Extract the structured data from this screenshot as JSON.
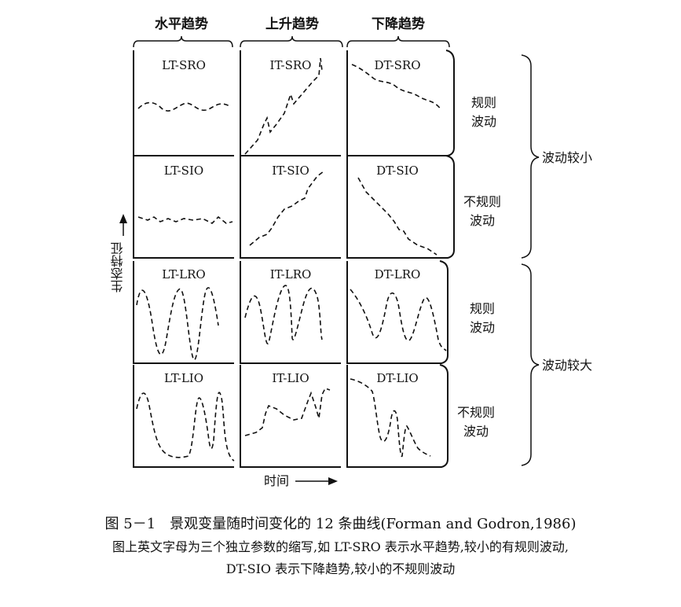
{
  "columns": [
    "水平趋势",
    "上升趋势",
    "下降趋势"
  ],
  "panels": [
    [
      "LT-SRO",
      "IT-SRO",
      "DT-SRO"
    ],
    [
      "LT-SIO",
      "IT-SIO",
      "DT-SIO"
    ],
    [
      "LT-LRO",
      "IT-LRO",
      "DT-LRO"
    ],
    [
      "LT-LIO",
      "IT-LIO",
      "DT-LIO"
    ]
  ],
  "row_labels": [
    [
      "规则",
      "波动"
    ],
    [
      "不规则",
      "波动"
    ],
    [
      "规则",
      "波动"
    ],
    [
      "不规则",
      "波动"
    ]
  ],
  "group_labels": [
    "波动较小",
    "波动较大"
  ],
  "y_axis_label": "生态特征",
  "x_axis_label": "时间",
  "caption": {
    "line1": "图 5－1　景观变量随时间变化的 12 条曲线(Forman and Godron,1986)",
    "line2": "图上英文字母为三个独立参数的缩写,如 LT-SRO 表示水平趋势,较小的有规则波动,",
    "line3": "DT-SIO 表示下降趋势,较小的不规则波动"
  }
}
